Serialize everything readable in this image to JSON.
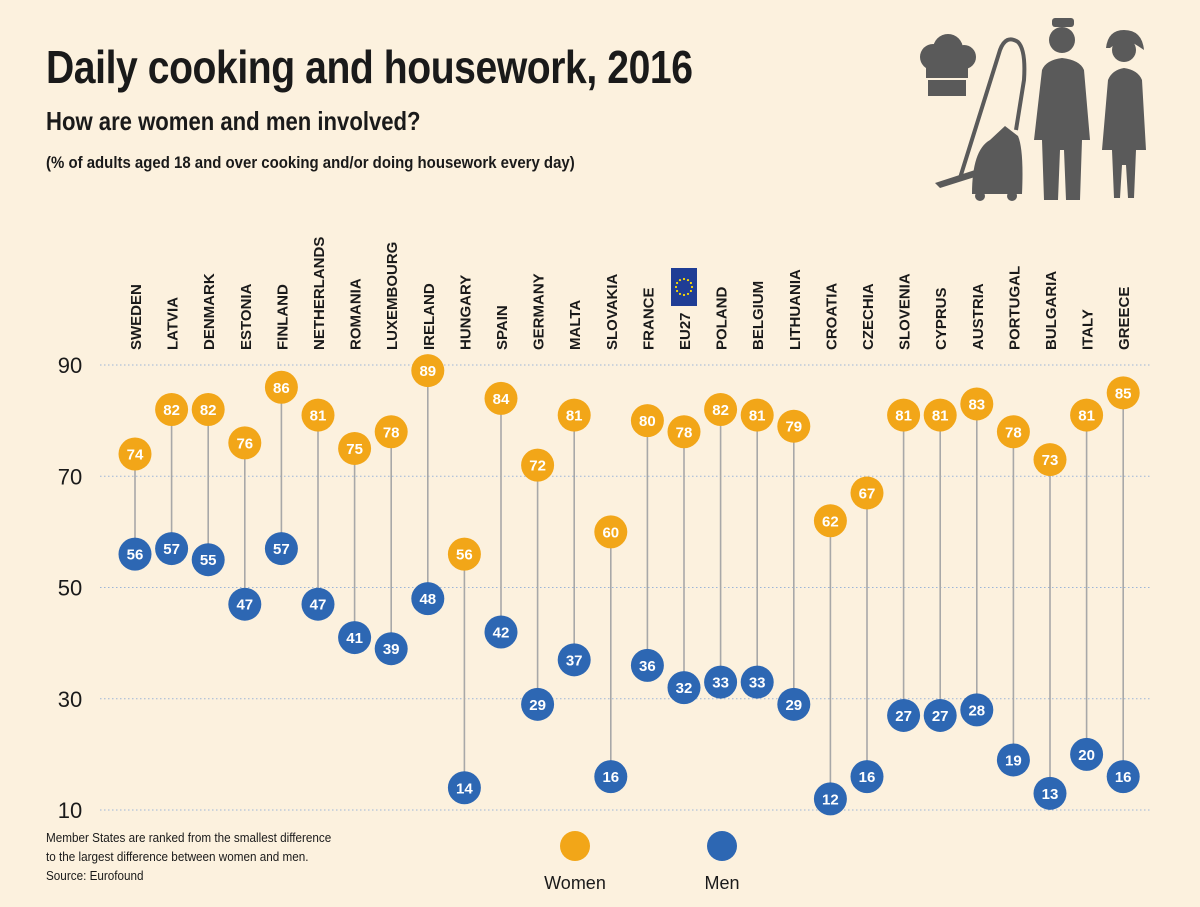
{
  "header": {
    "title": "Daily cooking and housework, 2016",
    "subtitle": "How are women and men involved?",
    "note": "(% of adults aged 18 and over cooking and/or doing housework every day)"
  },
  "footnote": {
    "line1": "Member States are ranked from the smallest difference",
    "line2": "to the largest difference between women and men.",
    "source": "Source: Eurofound"
  },
  "legend": {
    "women_label": "Women",
    "men_label": "Men"
  },
  "colors": {
    "women": "#f2a618",
    "men": "#2d67b3",
    "stem": "#a8a8a8",
    "grid": "#9bb5d8",
    "illustration": "#5a5a5a",
    "eu_flag": "#1f3d95",
    "eu_stars": "#ffdd00"
  },
  "illustration": [
    "chef-hat-icon",
    "vacuum-cleaner-icon",
    "man-icon",
    "woman-icon"
  ],
  "chart_data": {
    "type": "dot-range",
    "yticks": [
      90,
      70,
      50,
      30,
      10
    ],
    "ylim": [
      10,
      90
    ],
    "grid": true,
    "legend_position": "bottom-center",
    "categories": [
      "SWEDEN",
      "LATVIA",
      "DENMARK",
      "ESTONIA",
      "FINLAND",
      "NETHERLANDS",
      "ROMANIA",
      "LUXEMBOURG",
      "IRELAND",
      "HUNGARY",
      "SPAIN",
      "GERMANY",
      "MALTA",
      "SLOVAKIA",
      "FRANCE",
      "EU27",
      "POLAND",
      "BELGIUM",
      "LITHUANIA",
      "CROATIA",
      "CZECHIA",
      "SLOVENIA",
      "CYPRUS",
      "AUSTRIA",
      "PORTUGAL",
      "BULGARIA",
      "ITALY",
      "GREECE"
    ],
    "series": [
      {
        "name": "Women",
        "values": [
          74,
          82,
          82,
          76,
          86,
          81,
          75,
          78,
          89,
          56,
          84,
          72,
          81,
          60,
          80,
          78,
          82,
          81,
          79,
          62,
          67,
          81,
          81,
          83,
          78,
          73,
          81,
          85
        ]
      },
      {
        "name": "Men",
        "values": [
          56,
          57,
          55,
          47,
          57,
          47,
          41,
          39,
          48,
          14,
          42,
          29,
          37,
          16,
          36,
          32,
          33,
          33,
          29,
          12,
          16,
          27,
          27,
          28,
          19,
          13,
          20,
          16
        ]
      }
    ]
  }
}
